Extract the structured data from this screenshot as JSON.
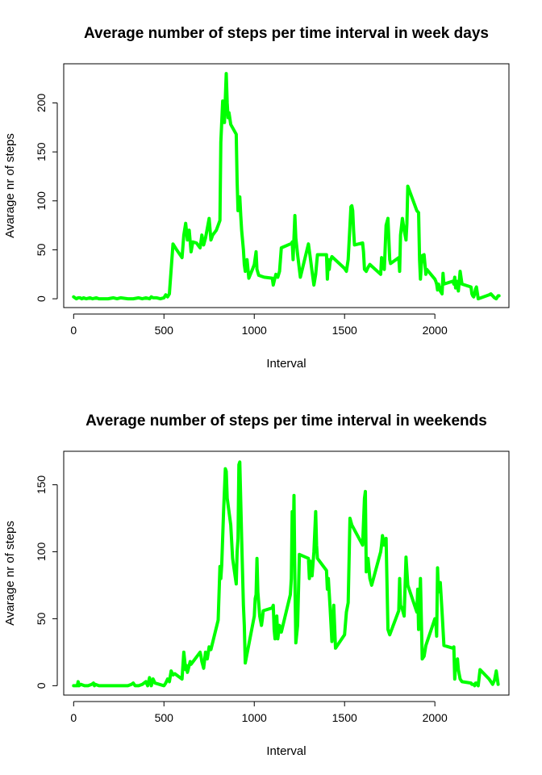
{
  "colors": {
    "line": "#00ff00",
    "axis": "#000000",
    "background": "#ffffff"
  },
  "chart_data": [
    {
      "type": "line",
      "title": "Average number of steps per time interval in week days",
      "xlabel": "Interval",
      "ylabel": "Avarage nr of steps",
      "xlim": [
        -55,
        2410
      ],
      "ylim": [
        -9,
        240
      ],
      "xticks": [
        0,
        500,
        1000,
        1500,
        2000
      ],
      "yticks": [
        0,
        50,
        100,
        150,
        200
      ],
      "xtick_labels": [
        "0",
        "500",
        "1000",
        "1500",
        "2000"
      ],
      "ytick_labels": [
        "0",
        "50",
        "100",
        "150",
        "200"
      ],
      "grid": false,
      "legend": "none",
      "series": [
        {
          "color": "#00ff00",
          "x": [
            0,
            15,
            25,
            35,
            45,
            55,
            70,
            90,
            105,
            125,
            140,
            160,
            190,
            220,
            240,
            260,
            300,
            330,
            360,
            380,
            400,
            420,
            430,
            440,
            460,
            480,
            500,
            510,
            520,
            530,
            550,
            570,
            600,
            610,
            620,
            630,
            640,
            650,
            660,
            680,
            700,
            710,
            720,
            730,
            750,
            760,
            770,
            790,
            800,
            810,
            815,
            825,
            835,
            840,
            845,
            850,
            855,
            860,
            870,
            900,
            905,
            910,
            915,
            920,
            925,
            930,
            940,
            945,
            950,
            960,
            970,
            990,
            1000,
            1010,
            1015,
            1025,
            1040,
            1055,
            1100,
            1105,
            1110,
            1120,
            1130,
            1140,
            1150,
            1200,
            1205,
            1210,
            1215,
            1225,
            1230,
            1240,
            1255,
            1300,
            1310,
            1315,
            1320,
            1330,
            1340,
            1350,
            1400,
            1405,
            1410,
            1415,
            1420,
            1430,
            1500,
            1510,
            1520,
            1535,
            1540,
            1545,
            1550,
            1555,
            1600,
            1605,
            1610,
            1620,
            1630,
            1640,
            1700,
            1705,
            1710,
            1720,
            1730,
            1740,
            1750,
            1755,
            1800,
            1805,
            1810,
            1820,
            1830,
            1840,
            1845,
            1850,
            1900,
            1910,
            1915,
            1920,
            1925,
            1930,
            1940,
            1950,
            1955,
            2000,
            2005,
            2010,
            2015,
            2020,
            2030,
            2040,
            2045,
            2050,
            2100,
            2105,
            2110,
            2115,
            2120,
            2125,
            2130,
            2140,
            2150,
            2200,
            2205,
            2210,
            2215,
            2220,
            2225,
            2230,
            2240,
            2300,
            2310,
            2330,
            2340,
            2350,
            2355
          ],
          "y": [
            2,
            0,
            1,
            1,
            0,
            1,
            0,
            1,
            0,
            1,
            0,
            0,
            0,
            1,
            0,
            1,
            0,
            0,
            1,
            0,
            1,
            0,
            2,
            1,
            1,
            0,
            1,
            4,
            2,
            5,
            56,
            50,
            42,
            65,
            77,
            60,
            70,
            48,
            58,
            57,
            52,
            65,
            55,
            62,
            82,
            60,
            65,
            70,
            75,
            80,
            160,
            202,
            180,
            205,
            230,
            200,
            185,
            190,
            178,
            168,
            120,
            90,
            100,
            104,
            85,
            70,
            50,
            35,
            28,
            40,
            21,
            30,
            35,
            48,
            30,
            24,
            23,
            22,
            21,
            14,
            18,
            25,
            22,
            28,
            52,
            56,
            56,
            58,
            40,
            85,
            62,
            45,
            22,
            56,
            42,
            35,
            28,
            14,
            25,
            45,
            45,
            20,
            40,
            30,
            38,
            43,
            31,
            28,
            40,
            94,
            95,
            90,
            70,
            55,
            57,
            48,
            30,
            28,
            32,
            35,
            25,
            42,
            32,
            30,
            75,
            82,
            40,
            36,
            42,
            28,
            65,
            82,
            70,
            60,
            77,
            115,
            90,
            88,
            40,
            20,
            35,
            44,
            45,
            25,
            30,
            20,
            18,
            15,
            9,
            15,
            8,
            5,
            26,
            15,
            18,
            15,
            22,
            11,
            18,
            13,
            8,
            28,
            15,
            12,
            5,
            3,
            2,
            5,
            10,
            12,
            0,
            4,
            5,
            1,
            0,
            3,
            3
          ],
          "smooth": false
        }
      ]
    },
    {
      "type": "line",
      "title": "Average number of steps per time interval in weekends",
      "xlabel": "Interval",
      "ylabel": "Avarage nr of steps",
      "xlim": [
        -55,
        2410
      ],
      "ylim": [
        -7,
        175
      ],
      "xticks": [
        0,
        500,
        1000,
        1500,
        2000
      ],
      "yticks": [
        0,
        50,
        100,
        150
      ],
      "xtick_labels": [
        "0",
        "500",
        "1000",
        "1500",
        "2000"
      ],
      "ytick_labels": [
        "0",
        "50",
        "100",
        "150"
      ],
      "grid": false,
      "legend": "none",
      "series": [
        {
          "color": "#00ff00",
          "x": [
            0,
            10,
            20,
            25,
            30,
            40,
            60,
            80,
            100,
            110,
            115,
            120,
            140,
            160,
            200,
            250,
            300,
            320,
            330,
            340,
            360,
            380,
            400,
            410,
            420,
            430,
            440,
            450,
            500,
            510,
            520,
            530,
            540,
            550,
            560,
            600,
            610,
            620,
            625,
            630,
            645,
            650,
            700,
            705,
            710,
            720,
            730,
            740,
            750,
            760,
            800,
            810,
            815,
            820,
            830,
            840,
            845,
            850,
            860,
            870,
            880,
            900,
            905,
            910,
            915,
            920,
            930,
            940,
            945,
            950,
            1000,
            1005,
            1010,
            1015,
            1020,
            1030,
            1040,
            1045,
            1050,
            1100,
            1105,
            1110,
            1115,
            1120,
            1125,
            1130,
            1140,
            1150,
            1200,
            1205,
            1210,
            1215,
            1220,
            1225,
            1230,
            1240,
            1250,
            1300,
            1305,
            1310,
            1320,
            1330,
            1340,
            1345,
            1350,
            1400,
            1405,
            1410,
            1420,
            1430,
            1440,
            1450,
            1500,
            1510,
            1520,
            1530,
            1540,
            1600,
            1610,
            1615,
            1620,
            1630,
            1640,
            1650,
            1700,
            1705,
            1710,
            1720,
            1730,
            1740,
            1750,
            1800,
            1805,
            1810,
            1820,
            1830,
            1840,
            1850,
            1900,
            1905,
            1910,
            1920,
            1930,
            1940,
            1950,
            2000,
            2005,
            2010,
            2015,
            2020,
            2030,
            2040,
            2050,
            2100,
            2105,
            2110,
            2115,
            2120,
            2125,
            2130,
            2140,
            2150,
            2200,
            2205,
            2210,
            2215,
            2220,
            2225,
            2230,
            2240,
            2250,
            2300,
            2310,
            2320,
            2330,
            2340,
            2350
          ],
          "y": [
            0,
            0,
            0,
            3,
            0,
            1,
            0,
            0,
            1,
            2,
            0,
            1,
            0,
            0,
            0,
            0,
            0,
            1,
            2,
            0,
            0,
            1,
            3,
            0,
            6,
            0,
            5,
            2,
            0,
            2,
            5,
            3,
            11,
            8,
            9,
            5,
            25,
            12,
            15,
            10,
            18,
            16,
            25,
            22,
            18,
            13,
            25,
            20,
            29,
            27,
            49,
            89,
            80,
            90,
            130,
            162,
            160,
            140,
            130,
            120,
            95,
            76,
            100,
            110,
            165,
            167,
            110,
            60,
            45,
            17,
            52,
            65,
            68,
            95,
            70,
            52,
            45,
            50,
            56,
            58,
            60,
            42,
            35,
            40,
            52,
            35,
            45,
            40,
            68,
            80,
            130,
            100,
            142,
            80,
            32,
            45,
            98,
            95,
            80,
            93,
            82,
            100,
            130,
            105,
            95,
            86,
            72,
            80,
            58,
            33,
            60,
            28,
            38,
            55,
            62,
            125,
            120,
            105,
            140,
            145,
            85,
            95,
            80,
            75,
            100,
            105,
            112,
            105,
            110,
            42,
            38,
            56,
            80,
            60,
            57,
            52,
            96,
            75,
            55,
            72,
            42,
            80,
            20,
            22,
            30,
            50,
            48,
            37,
            88,
            70,
            77,
            55,
            30,
            28,
            29,
            5,
            15,
            12,
            20,
            12,
            5,
            3,
            2,
            1,
            1,
            1,
            0,
            2,
            2,
            0,
            12,
            5,
            3,
            1,
            4,
            11,
            1
          ]
        }
      ]
    }
  ]
}
